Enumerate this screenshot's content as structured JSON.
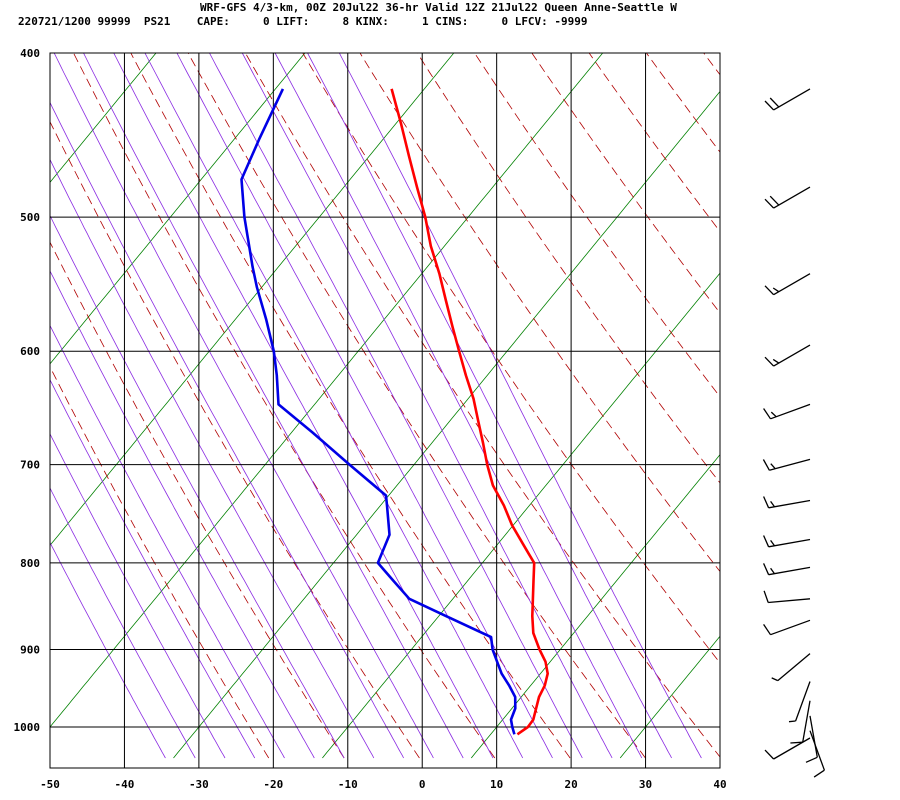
{
  "header": {
    "title": "WRF-GFS 4/3-km, 00Z 20Jul22 36-hr Valid 12Z 21Jul22 Queen Anne-Seattle W",
    "info": "220721/1200 99999  PS21    CAPE:     0 LIFT:     8 KINX:     1 CINS:     0 LFCV: -9999"
  },
  "colors": {
    "temperature": "#ff0000",
    "dewpoint": "#0000e6",
    "dry_adiabat": "#b00000",
    "moist_adiabat": "#8a2be2",
    "isotherm_green": "#008000",
    "grid": "#000000",
    "wind_barb": "#000000"
  },
  "chart_data": {
    "type": "line",
    "chart_kind": "skew-T log-P sounding",
    "x_ticks": [
      "-50",
      "-40",
      "-30",
      "-20",
      "-10",
      "0",
      "10",
      "20",
      "30",
      "40"
    ],
    "y_ticks": [
      "400",
      "500",
      "600",
      "700",
      "800",
      "900",
      "1000"
    ],
    "x_tick_values": [
      -50,
      -40,
      -30,
      -20,
      -10,
      0,
      10,
      20,
      30,
      40
    ],
    "y_tick_values": [
      400,
      500,
      600,
      700,
      800,
      900,
      1000
    ],
    "xlim": [
      -50,
      40
    ],
    "ylim": [
      1043,
      400
    ],
    "y_scale": "log",
    "grid": true,
    "series": [
      {
        "key": "temperature",
        "points": [
          [
            1010,
            12.9
          ],
          [
            1000,
            14.2
          ],
          [
            990,
            14.8
          ],
          [
            975,
            15.0
          ],
          [
            960,
            15.2
          ],
          [
            945,
            15.8
          ],
          [
            930,
            16.0
          ],
          [
            915,
            15.5
          ],
          [
            900,
            14.5
          ],
          [
            880,
            13.4
          ],
          [
            860,
            13.0
          ],
          [
            840,
            12.8
          ],
          [
            820,
            12.6
          ],
          [
            800,
            12.4
          ],
          [
            790,
            11.5
          ],
          [
            780,
            10.6
          ],
          [
            760,
            8.8
          ],
          [
            740,
            7.4
          ],
          [
            720,
            5.6
          ],
          [
            700,
            4.5
          ],
          [
            680,
            3.6
          ],
          [
            660,
            2.6
          ],
          [
            640,
            1.6
          ],
          [
            620,
            0.2
          ],
          [
            600,
            -1.1
          ],
          [
            580,
            -2.4
          ],
          [
            560,
            -3.7
          ],
          [
            540,
            -5.0
          ],
          [
            520,
            -6.6
          ],
          [
            500,
            -7.8
          ],
          [
            480,
            -9.4
          ],
          [
            460,
            -11.0
          ],
          [
            440,
            -12.6
          ],
          [
            420,
            -14.4
          ]
        ]
      },
      {
        "key": "dewpoint",
        "points": [
          [
            1010,
            12.5
          ],
          [
            1000,
            12.1
          ],
          [
            990,
            11.8
          ],
          [
            975,
            12.2
          ],
          [
            960,
            12.0
          ],
          [
            945,
            11.0
          ],
          [
            930,
            9.8
          ],
          [
            915,
            9.0
          ],
          [
            900,
            8.2
          ],
          [
            885,
            7.8
          ],
          [
            860,
            1.4
          ],
          [
            840,
            -3.8
          ],
          [
            820,
            -6.2
          ],
          [
            800,
            -8.6
          ],
          [
            770,
            -7.5
          ],
          [
            740,
            -8.3
          ],
          [
            730,
            -8.6
          ],
          [
            700,
            -14.0
          ],
          [
            670,
            -19.5
          ],
          [
            645,
            -24.5
          ],
          [
            620,
            -25.2
          ],
          [
            600,
            -26.0
          ],
          [
            575,
            -27.5
          ],
          [
            550,
            -29.3
          ],
          [
            535,
            -30.2
          ],
          [
            500,
            -32.1
          ],
          [
            475,
            -33.1
          ],
          [
            450,
            -31.4
          ],
          [
            420,
            -29.0
          ]
        ]
      }
    ],
    "wind_barbs": [
      {
        "p": 420,
        "dir": 240,
        "kt": 20
      },
      {
        "p": 480,
        "dir": 240,
        "kt": 20
      },
      {
        "p": 540,
        "dir": 240,
        "kt": 15
      },
      {
        "p": 595,
        "dir": 240,
        "kt": 15
      },
      {
        "p": 645,
        "dir": 250,
        "kt": 15
      },
      {
        "p": 695,
        "dir": 255,
        "kt": 15
      },
      {
        "p": 735,
        "dir": 260,
        "kt": 15
      },
      {
        "p": 775,
        "dir": 260,
        "kt": 15
      },
      {
        "p": 805,
        "dir": 260,
        "kt": 15
      },
      {
        "p": 840,
        "dir": 265,
        "kt": 10
      },
      {
        "p": 865,
        "dir": 250,
        "kt": 10
      },
      {
        "p": 905,
        "dir": 230,
        "kt": 5
      },
      {
        "p": 940,
        "dir": 200,
        "kt": 5
      },
      {
        "p": 965,
        "dir": 190,
        "kt": 10
      },
      {
        "p": 985,
        "dir": 170,
        "kt": 10
      },
      {
        "p": 1005,
        "dir": 160,
        "kt": 10
      },
      {
        "p": 1015,
        "dir": 240,
        "kt": 10
      }
    ]
  }
}
